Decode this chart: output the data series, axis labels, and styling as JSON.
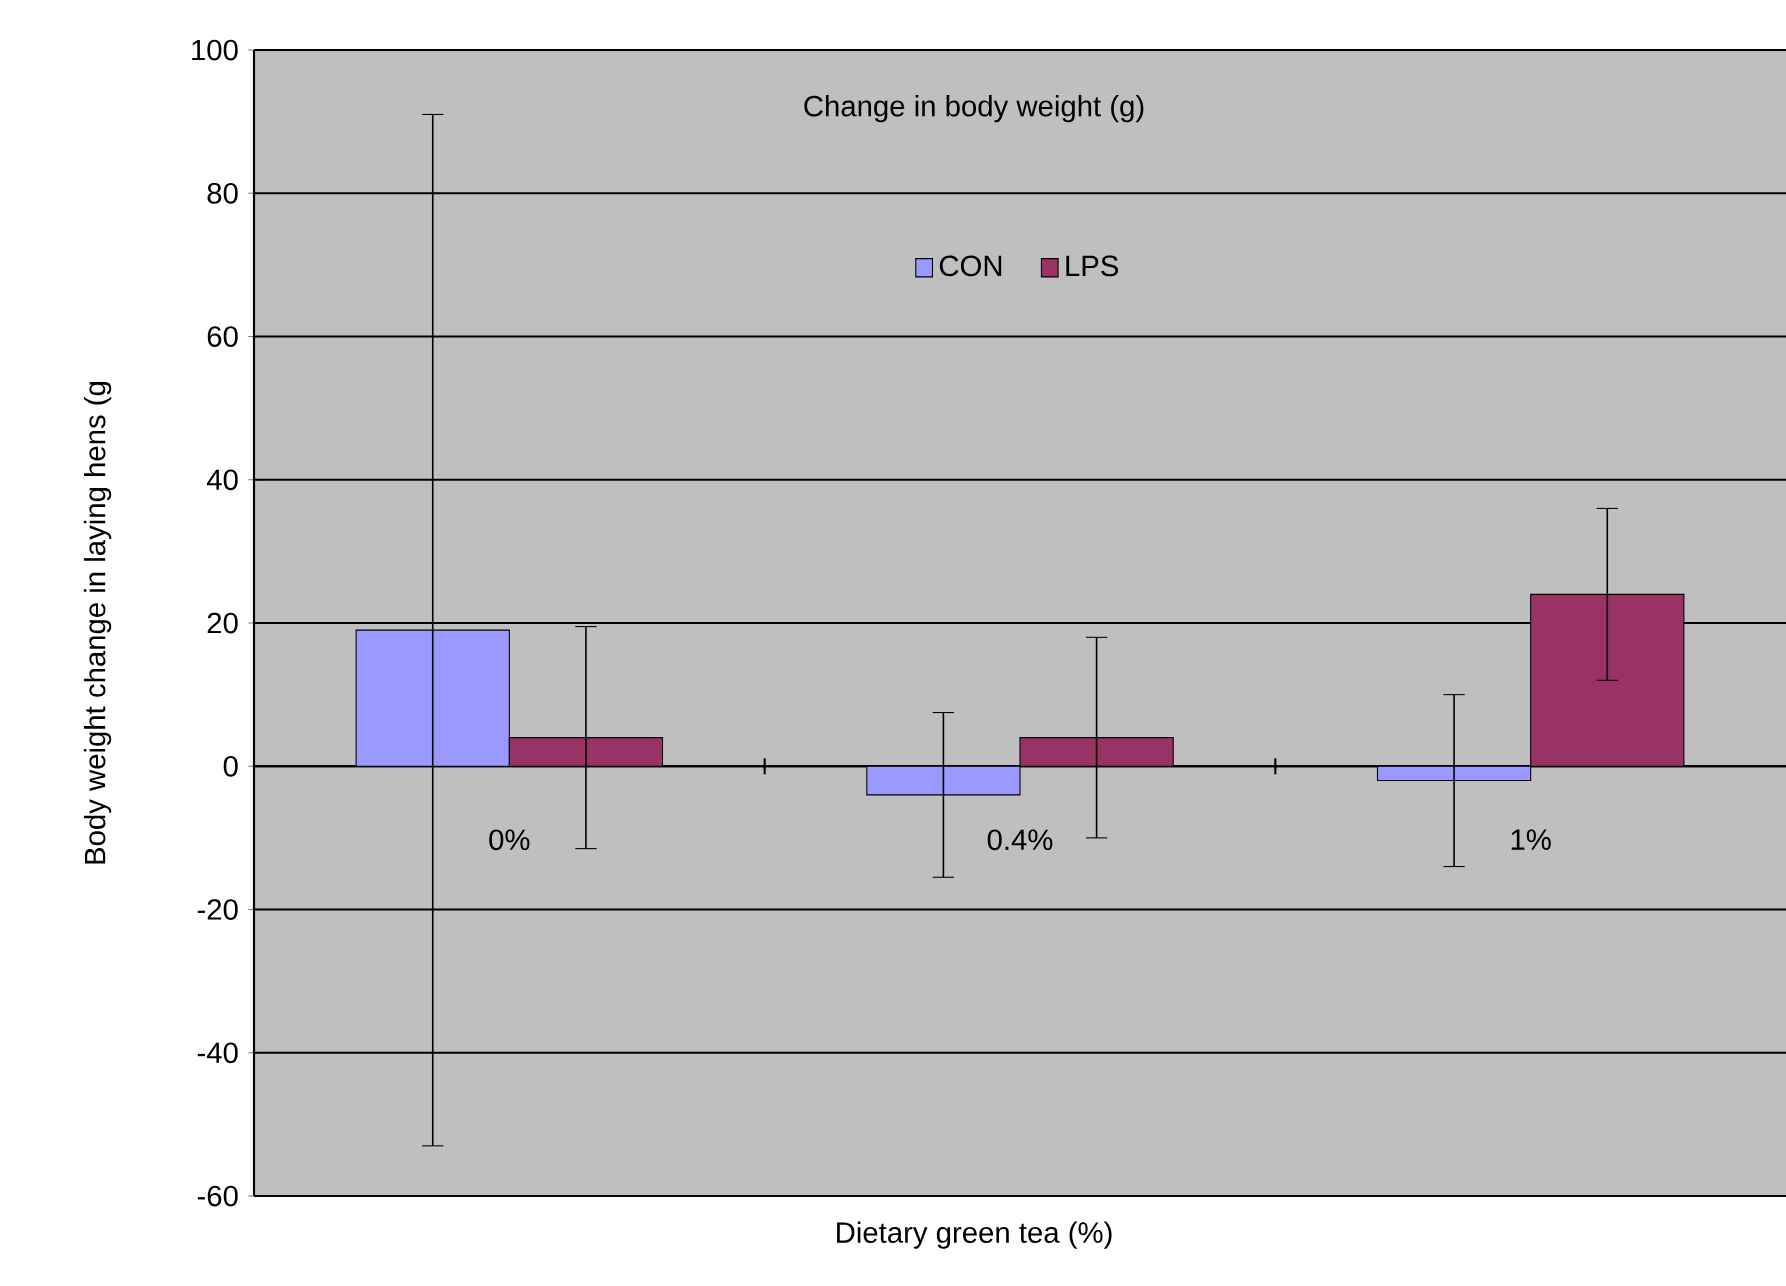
{
  "chart_data": {
    "type": "bar",
    "title": "Change in body weight (g)",
    "xlabel": "Dietary green tea (%)",
    "ylabel": "Body weight change in laying hens (g",
    "categories": [
      "0%",
      "0.4%",
      "1%"
    ],
    "series": [
      {
        "name": "CON",
        "color": "#9999ff",
        "values": [
          19,
          -4,
          -2
        ],
        "errors": [
          72,
          11.5,
          12
        ]
      },
      {
        "name": "LPS",
        "color": "#993366",
        "values": [
          4,
          4,
          24
        ],
        "errors": [
          15.5,
          14,
          12
        ]
      }
    ],
    "ylim": [
      -60,
      100
    ],
    "yticks": [
      -60,
      -40,
      -20,
      0,
      20,
      40,
      60,
      80,
      100
    ],
    "grid": "y",
    "legend": "top"
  }
}
